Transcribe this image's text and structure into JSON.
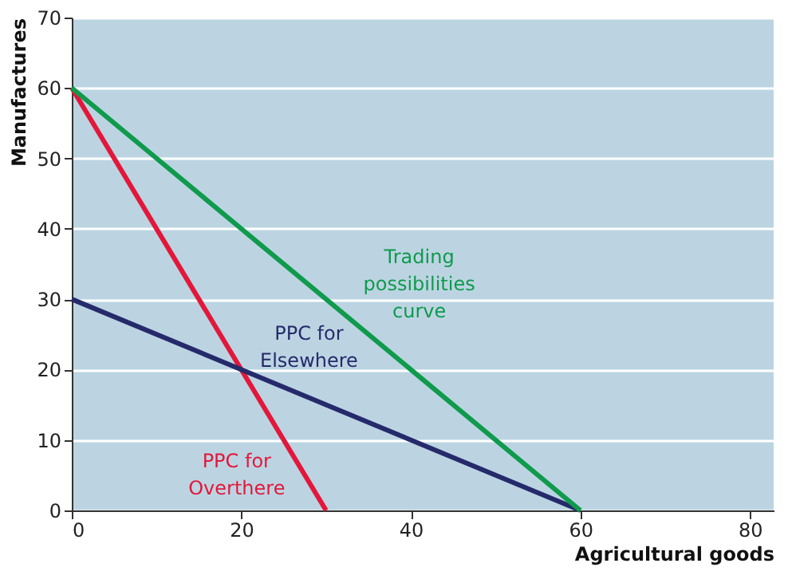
{
  "chart_data": {
    "type": "line",
    "xlabel": "Agricultural goods",
    "ylabel": "Manufactures",
    "series": [
      {
        "color": "#e3173a",
        "x": [
          0,
          30
        ],
        "values": [
          60,
          0
        ]
      },
      {
        "color": "#252a6b",
        "x": [
          0,
          60
        ],
        "values": [
          30,
          0
        ]
      },
      {
        "color": "#0f9a4c",
        "x": [
          0,
          60
        ],
        "values": [
          60,
          0
        ]
      }
    ],
    "annotations": [
      "PPC for\nOverthere",
      "PPC for\nElsewhere",
      "Trading\npossibilities\ncurve"
    ],
    "xlim": [
      0,
      82.8
    ],
    "xticks": [
      0,
      20,
      40,
      60,
      80
    ],
    "ylim": [
      0,
      70
    ],
    "yticks": [
      0,
      10,
      20,
      30,
      40,
      50,
      60,
      70
    ],
    "grid": "y",
    "marker": "none",
    "line_style": "solid"
  }
}
